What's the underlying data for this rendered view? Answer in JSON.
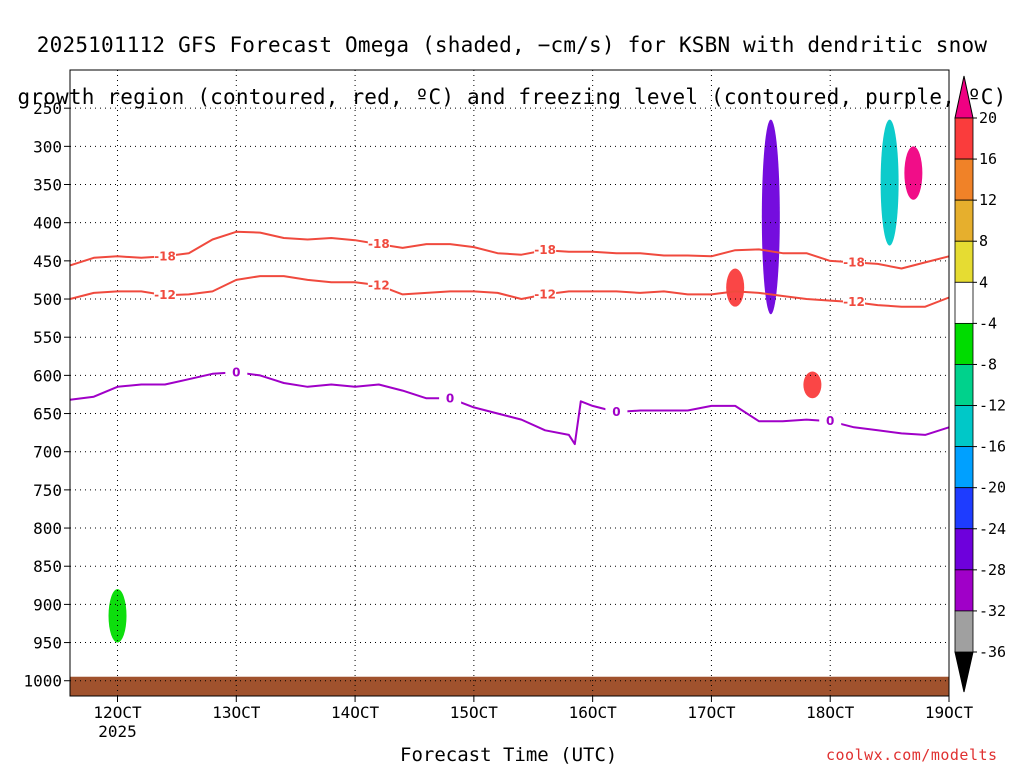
{
  "title": {
    "line1": "2025101112 GFS Forecast Omega (shaded, −cm/s) for KSBN with dendritic snow",
    "line2": "growth region (contoured, red, ºC) and freezing level (contoured, purple, ºC)"
  },
  "footer": {
    "xlabel": "Forecast Time (UTC)",
    "credit": "coolwx.com/modelts"
  },
  "colors": {
    "dendritic": "#f04a3e",
    "freezing": "#a000c8",
    "ground": "#a0522d",
    "grid": "#000000"
  },
  "chart_data": {
    "type": "heatmap",
    "title": "2025101112 GFS Forecast Omega (shaded, −cm/s) for KSBN with dendritic snow growth region (contoured, red, ºC) and freezing level (contoured, purple, ºC)",
    "xlabel": "Forecast Time (UTC)",
    "ylabel": "",
    "x_ticks": [
      "12OCT",
      "13OCT",
      "14OCT",
      "15OCT",
      "16OCT",
      "17OCT",
      "18OCT",
      "19OCT"
    ],
    "x_tick_sub": {
      "12OCT": "2025"
    },
    "x_range_days": [
      11.6,
      19.0
    ],
    "y_ticks_hpa": [
      250,
      300,
      350,
      400,
      450,
      500,
      550,
      600,
      650,
      700,
      750,
      800,
      850,
      900,
      950,
      1000
    ],
    "y_range_hpa": [
      200,
      1020
    ],
    "grid": "dotted",
    "colorbar": {
      "levels": [
        -36,
        -32,
        -28,
        -24,
        -20,
        -16,
        -12,
        -8,
        -4,
        4,
        8,
        12,
        16,
        20
      ],
      "colors": [
        "#000000",
        "#a0a0a0",
        "#a000c8",
        "#6e00dc",
        "#1e3cff",
        "#00a0ff",
        "#00c8c8",
        "#00d28c",
        "#00dc00",
        "#ffffff",
        "#e6dc32",
        "#e6af2d",
        "#f08228",
        "#fa3c3c",
        "#f00082"
      ]
    },
    "contour_labels": {
      "dendritic_upper": "-18",
      "dendritic_lower": "-12",
      "freezing": "0"
    },
    "series": [
      {
        "name": "-18",
        "color": "#f04a3e",
        "x": [
          11.6,
          11.8,
          12.0,
          12.2,
          12.4,
          12.6,
          12.8,
          13.0,
          13.2,
          13.4,
          13.6,
          13.8,
          14.0,
          14.2,
          14.4,
          14.6,
          14.8,
          15.0,
          15.2,
          15.4,
          15.6,
          15.8,
          16.0,
          16.2,
          16.4,
          16.6,
          16.8,
          17.0,
          17.2,
          17.4,
          17.6,
          17.8,
          18.0,
          18.2,
          18.4,
          18.6,
          18.8,
          19.0
        ],
        "y": [
          456,
          446,
          444,
          446,
          444,
          440,
          422,
          412,
          413,
          420,
          422,
          420,
          423,
          428,
          433,
          428,
          428,
          432,
          440,
          442,
          436,
          438,
          438,
          440,
          440,
          443,
          443,
          444,
          436,
          435,
          440,
          440,
          450,
          452,
          454,
          460,
          452,
          444
        ]
      },
      {
        "name": "-12",
        "color": "#f04a3e",
        "x": [
          11.6,
          11.8,
          12.0,
          12.2,
          12.4,
          12.6,
          12.8,
          13.0,
          13.2,
          13.4,
          13.6,
          13.8,
          14.0,
          14.2,
          14.4,
          14.6,
          14.8,
          15.0,
          15.2,
          15.4,
          15.6,
          15.8,
          16.0,
          16.2,
          16.4,
          16.6,
          16.8,
          17.0,
          17.2,
          17.4,
          17.6,
          17.8,
          18.0,
          18.2,
          18.4,
          18.6,
          18.8,
          19.0
        ],
        "y": [
          500,
          492,
          490,
          490,
          495,
          494,
          490,
          475,
          470,
          470,
          475,
          478,
          478,
          482,
          494,
          492,
          490,
          490,
          492,
          500,
          494,
          490,
          490,
          490,
          492,
          490,
          494,
          494,
          490,
          492,
          496,
          500,
          502,
          504,
          508,
          510,
          510,
          498
        ]
      },
      {
        "name": "0",
        "color": "#a000c8",
        "x": [
          11.6,
          11.8,
          12.0,
          12.2,
          12.4,
          12.6,
          12.8,
          13.0,
          13.2,
          13.4,
          13.6,
          13.8,
          14.0,
          14.2,
          14.4,
          14.6,
          14.8,
          15.0,
          15.2,
          15.4,
          15.6,
          15.8,
          15.85,
          15.9,
          16.0,
          16.2,
          16.4,
          16.6,
          16.8,
          17.0,
          17.2,
          17.4,
          17.6,
          17.8,
          18.0,
          18.2,
          18.4,
          18.6,
          18.8,
          19.0
        ],
        "y": [
          632,
          628,
          615,
          612,
          612,
          605,
          598,
          596,
          600,
          610,
          615,
          612,
          615,
          612,
          620,
          630,
          630,
          642,
          650,
          658,
          672,
          678,
          690,
          634,
          640,
          648,
          646,
          646,
          646,
          640,
          640,
          660,
          660,
          658,
          660,
          668,
          672,
          676,
          678,
          668
        ]
      }
    ],
    "omega_features": [
      {
        "x": 17.5,
        "p_top": 265,
        "p_bottom": 520,
        "value": -28
      },
      {
        "x": 18.5,
        "p_top": 265,
        "p_bottom": 430,
        "value": -16
      },
      {
        "x": 18.7,
        "p_top": 300,
        "p_bottom": 370,
        "value": 20
      },
      {
        "x": 17.2,
        "p_top": 460,
        "p_bottom": 510,
        "value": 16
      },
      {
        "x": 17.85,
        "p_top": 595,
        "p_bottom": 630,
        "value": 16
      },
      {
        "x": 12.0,
        "p_top": 880,
        "p_bottom": 950,
        "value": -8
      }
    ]
  }
}
